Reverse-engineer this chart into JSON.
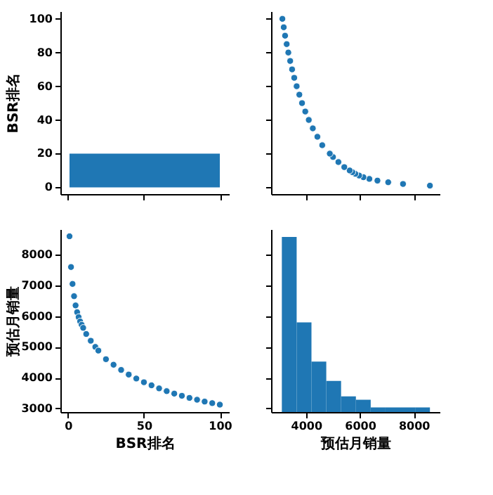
{
  "chart_data": [
    {
      "type": "histogram",
      "ylabel": "BSR排名",
      "bins": [
        1,
        100
      ],
      "values": [
        20
      ],
      "color": "#1f77b4",
      "xlim": [
        -5,
        106
      ],
      "xticks": [
        0,
        50,
        100
      ],
      "ylim": [
        -4,
        104.5
      ],
      "yticks": [
        0,
        20,
        40,
        60,
        80,
        100
      ],
      "tick_labels": "y"
    },
    {
      "type": "scatter",
      "marker": "circle",
      "color": "#1f77b4",
      "xlim": [
        2700,
        8960
      ],
      "xticks": [
        4000,
        6000,
        8000
      ],
      "ylim": [
        -4,
        104.5
      ],
      "yticks": [
        0,
        20,
        40,
        60,
        80,
        100
      ],
      "tick_labels": false,
      "x": [
        8600,
        7600,
        7050,
        6650,
        6350,
        6130,
        5970,
        5830,
        5720,
        5620,
        5420,
        5200,
        5000,
        4880,
        4600,
        4420,
        4250,
        4100,
        3970,
        3850,
        3750,
        3650,
        3560,
        3480,
        3410,
        3340,
        3280,
        3220,
        3170,
        3120
      ],
      "values": [
        1,
        2,
        3,
        4,
        5,
        6,
        7,
        8,
        9,
        10,
        12,
        15,
        18,
        20,
        25,
        30,
        35,
        40,
        45,
        50,
        55,
        60,
        65,
        70,
        75,
        80,
        85,
        90,
        95,
        100
      ]
    },
    {
      "type": "scatter",
      "marker": "circle",
      "color": "#1f77b4",
      "xlabel": "BSR排名",
      "ylabel": "预估月销量",
      "xlim": [
        -5,
        106
      ],
      "xticks": [
        0,
        50,
        100
      ],
      "ylim": [
        2880,
        8830
      ],
      "yticks": [
        3000,
        4000,
        5000,
        6000,
        7000,
        8000
      ],
      "x": [
        1,
        2,
        3,
        4,
        5,
        6,
        7,
        8,
        9,
        10,
        12,
        15,
        18,
        20,
        25,
        30,
        35,
        40,
        45,
        50,
        55,
        60,
        65,
        70,
        75,
        80,
        85,
        90,
        95,
        100
      ],
      "values": [
        8600,
        7600,
        7050,
        6650,
        6350,
        6130,
        5970,
        5830,
        5720,
        5620,
        5420,
        5200,
        5000,
        4880,
        4600,
        4420,
        4250,
        4100,
        3970,
        3850,
        3750,
        3650,
        3560,
        3480,
        3410,
        3340,
        3280,
        3220,
        3170,
        3120
      ]
    },
    {
      "type": "histogram",
      "xlabel": "预估月销量",
      "bins": [
        3100,
        3650,
        4200,
        4750,
        5300,
        5850,
        6400,
        6950,
        7500,
        8050,
        8600
      ],
      "values": [
        8580,
        5800,
        4520,
        3890,
        3390,
        3280,
        3030,
        3030,
        3030,
        3030
      ],
      "color": "#1f77b4",
      "xlim": [
        2700,
        8960
      ],
      "xticks": [
        4000,
        6000,
        8000
      ],
      "ylim": [
        2880,
        8830
      ],
      "yticks": [
        3000,
        4000,
        5000,
        6000,
        7000,
        8000
      ],
      "tick_labels": "x"
    }
  ]
}
